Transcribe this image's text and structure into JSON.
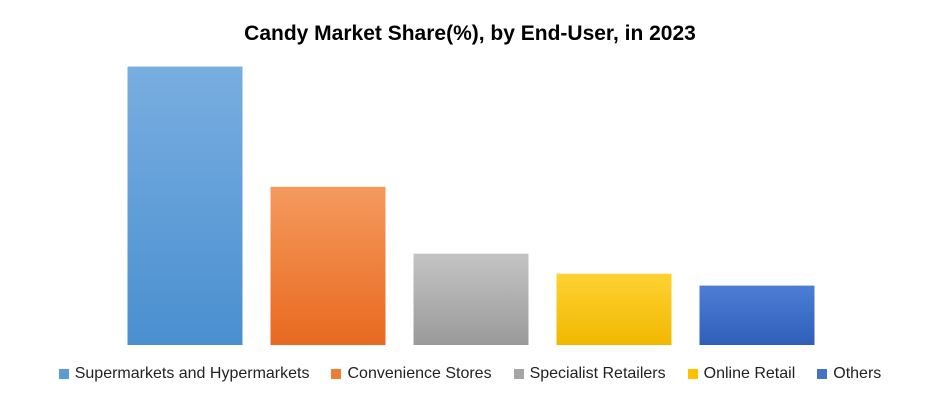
{
  "chart_data": {
    "type": "bar",
    "title": "Candy Market Share(%), by End-User, in 2023",
    "xlabel": "",
    "ylabel": "",
    "ylim": [
      0,
      40
    ],
    "grid": false,
    "legend_position": "bottom",
    "categories": [
      "Supermarkets and Hypermarkets",
      "Convenience Stores",
      "Specialist Retailers",
      "Online Retail",
      "Others"
    ],
    "values": [
      37.5,
      21.3,
      12.3,
      9.6,
      8.0
    ],
    "colors": [
      [
        "#78aee0",
        "#4a8fd0"
      ],
      [
        "#f59a5e",
        "#e8691f"
      ],
      [
        "#c4c4c4",
        "#9a9a9a"
      ],
      [
        "#ffd233",
        "#f0b800"
      ],
      [
        "#4d7ed4",
        "#2f5fba"
      ]
    ],
    "legend_colors": [
      "#5b9bd5",
      "#ed7d31",
      "#a5a5a5",
      "#ffc000",
      "#4472c4"
    ]
  }
}
